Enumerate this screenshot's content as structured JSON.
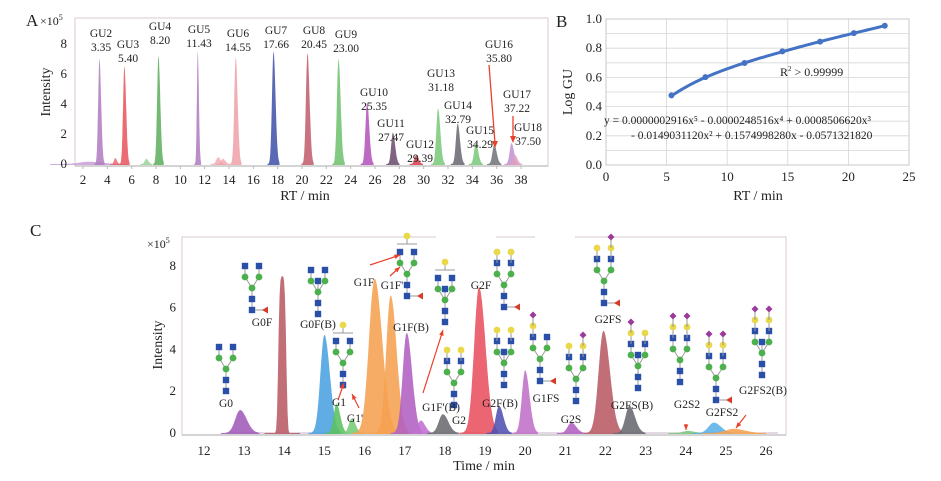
{
  "figure": {
    "panel_labels": {
      "a": "A",
      "b": "B",
      "c": "C"
    }
  },
  "chart_data": [
    {
      "id": "A",
      "type": "line",
      "title": "",
      "xlabel": "RT / min",
      "ylabel": "Intensity",
      "y_multiplier": "×10",
      "y_multiplier_exp": "5",
      "xlim": [
        1.6,
        39.2
      ],
      "ylim": [
        -0.2,
        9.9
      ],
      "xticks": [
        2,
        4,
        6,
        8,
        10,
        12,
        14,
        16,
        18,
        20,
        22,
        24,
        26,
        28,
        30,
        32,
        34,
        36,
        38
      ],
      "yticks": [
        0,
        2,
        4,
        6,
        8
      ],
      "grid": false,
      "peaks": [
        {
          "name": "GU2",
          "rt": 3.35,
          "height": 7.0,
          "color": "#b07ac0",
          "label_rt": "3.35"
        },
        {
          "name": "GU3",
          "rt": 5.4,
          "height": 6.5,
          "color": "#e8545a",
          "label_rt": "5.40"
        },
        {
          "name": "GU4",
          "rt": 8.2,
          "height": 7.2,
          "color": "#5aab5a",
          "label_rt": "8.20"
        },
        {
          "name": "GU5",
          "rt": 11.43,
          "height": 7.5,
          "color": "#b07ac0",
          "label_rt": "11.43"
        },
        {
          "name": "GU6",
          "rt": 14.55,
          "height": 7.1,
          "color": "#f0a0a8",
          "label_rt": "14.55"
        },
        {
          "name": "GU7",
          "rt": 17.66,
          "height": 7.5,
          "color": "#3e4fa8",
          "label_rt": "17.66"
        },
        {
          "name": "GU8",
          "rt": 20.45,
          "height": 7.4,
          "color": "#c05a6a",
          "label_rt": "20.45"
        },
        {
          "name": "GU9",
          "rt": 23.0,
          "height": 7.0,
          "color": "#6cc06c",
          "label_rt": "23.00"
        },
        {
          "name": "GU10",
          "rt": 25.35,
          "height": 4.1,
          "color": "#b050b8",
          "label_rt": "25.35"
        },
        {
          "name": "GU11",
          "rt": 27.47,
          "height": 2.1,
          "color": "#6a4a6a",
          "label_rt": "27.47"
        },
        {
          "name": "GU12",
          "rt": 29.39,
          "height": 0.6,
          "color": "#d83a4a",
          "label_rt": "29.39"
        },
        {
          "name": "GU13",
          "rt": 31.18,
          "height": 3.7,
          "color": "#78c878",
          "label_rt": "31.18"
        },
        {
          "name": "GU14",
          "rt": 32.79,
          "height": 2.7,
          "color": "#666670",
          "label_rt": "32.79"
        },
        {
          "name": "GU15",
          "rt": 34.29,
          "height": 1.4,
          "color": "#78c878",
          "label_rt": "34.29"
        },
        {
          "name": "GU16",
          "rt": 35.8,
          "height": 1.3,
          "color": "#707078",
          "label_rt": "35.80"
        },
        {
          "name": "GU17",
          "rt": 37.22,
          "height": 1.4,
          "color": "#c090d0",
          "label_rt": "37.22"
        },
        {
          "name": "GU18",
          "rt": 37.5,
          "height": 0.6,
          "color": "#e0a0c0",
          "label_rt": "37.50"
        }
      ],
      "minor_peaks": [
        {
          "rt": 2.5,
          "height": 0.15,
          "color": "#c090d0",
          "width": 0.8
        },
        {
          "rt": 4.65,
          "height": 0.4,
          "color": "#e8545a",
          "width": 0.1
        },
        {
          "rt": 7.2,
          "height": 0.35,
          "color": "#8acc8a",
          "width": 0.12
        },
        {
          "rt": 13.1,
          "height": 0.45,
          "color": "#f0a0a8",
          "width": 0.15
        },
        {
          "rt": 13.5,
          "height": 0.35,
          "color": "#f0a0a8",
          "width": 0.15
        }
      ]
    },
    {
      "id": "B",
      "type": "scatter",
      "xlabel": "RT / min",
      "ylabel": "Log GU",
      "xlim": [
        0,
        25
      ],
      "ylim": [
        0.0,
        1.0
      ],
      "xticks": [
        0,
        5,
        10,
        15,
        20,
        25
      ],
      "yticks": [
        "0.0",
        "0.2",
        "0.4",
        "0.6",
        "0.8",
        "1.0"
      ],
      "grid": true,
      "x": [
        5.4,
        8.2,
        11.43,
        14.55,
        17.66,
        20.45,
        23.0
      ],
      "y": [
        0.477,
        0.602,
        0.699,
        0.778,
        0.845,
        0.903,
        0.954
      ],
      "series_color": "#4472c4",
      "r2_text": "R",
      "r2_sup": "2",
      "r2_value": " > 0.99999",
      "equation_line1": "y = 0.0000002916x⁵ - 0.0000248516x⁴ + 0.0008506620x³",
      "equation_line2": "- 0.0149031120x² + 0.1574998280x - 0.0571321820"
    },
    {
      "id": "C",
      "type": "line",
      "xlabel": "Time / min",
      "ylabel": "Intensity",
      "y_multiplier": "×10",
      "y_multiplier_exp": "5",
      "xlim": [
        11.55,
        26.45
      ],
      "ylim": [
        -0.05,
        9.6
      ],
      "xticks": [
        12,
        13,
        14,
        15,
        16,
        17,
        18,
        19,
        20,
        21,
        22,
        23,
        24,
        25,
        26
      ],
      "yticks": [
        0,
        2,
        4,
        6,
        8
      ],
      "grid": false,
      "peaks": [
        {
          "name": "G0",
          "rt": 12.9,
          "height": 1.1,
          "width": 0.12,
          "color": "#a05ab8"
        },
        {
          "name": "G0F",
          "rt": 13.95,
          "height": 7.5,
          "width": 0.11,
          "color": "#b85a64",
          "flat": true
        },
        {
          "name": "G0F(B)",
          "rt": 15.0,
          "height": 4.7,
          "width": 0.1,
          "color": "#4aa0e0"
        },
        {
          "name": "G1",
          "rt": 15.3,
          "height": 1.4,
          "width": 0.07,
          "color": "#5ac060"
        },
        {
          "name": "G1'",
          "rt": 15.68,
          "height": 0.7,
          "width": 0.07,
          "color": "#78cc78"
        },
        {
          "name": "G1F",
          "rt": 16.25,
          "height": 7.4,
          "width": 0.14,
          "color": "#f5a050"
        },
        {
          "name": "G1F'",
          "rt": 16.65,
          "height": 6.6,
          "width": 0.11,
          "color": "#f5a050"
        },
        {
          "name": "G1F(B)",
          "rt": 17.05,
          "height": 4.8,
          "width": 0.1,
          "color": "#b060c0"
        },
        {
          "name": "G1F'(B)",
          "rt": 17.4,
          "height": 0.6,
          "width": 0.08,
          "color": "#c070d0"
        },
        {
          "name": "G2",
          "rt": 17.95,
          "height": 0.9,
          "width": 0.1,
          "color": "#6a6a70"
        },
        {
          "name": "G2F",
          "rt": 18.85,
          "height": 7.0,
          "width": 0.12,
          "color": "#e85060"
        },
        {
          "name": "G2F(B)",
          "rt": 19.35,
          "height": 1.3,
          "width": 0.08,
          "color": "#5050b0"
        },
        {
          "name": "G1FS",
          "rt": 20.0,
          "height": 3.0,
          "width": 0.08,
          "color": "#c070c8"
        },
        {
          "name": "G2S",
          "rt": 21.15,
          "height": 0.5,
          "width": 0.09,
          "color": "#b060c0"
        },
        {
          "name": "G2FS",
          "rt": 21.95,
          "height": 4.9,
          "width": 0.12,
          "color": "#b85a64"
        },
        {
          "name": "G2FS(B)",
          "rt": 22.6,
          "height": 1.3,
          "width": 0.1,
          "color": "#686870"
        },
        {
          "name": "G2S2",
          "rt": 24.05,
          "height": 0.1,
          "width": 0.12,
          "color": "#78c878"
        },
        {
          "name": "G2FS2",
          "rt": 24.7,
          "height": 0.5,
          "width": 0.13,
          "color": "#5ab0e8"
        },
        {
          "name": "G2FS2(B)",
          "rt": 25.2,
          "height": 0.2,
          "width": 0.2,
          "color": "#f5a050"
        }
      ],
      "glycan_labels": [
        "G0",
        "G0F",
        "G0F(B)",
        "G1",
        "G1'",
        "G1F",
        "G1F'",
        "G1F(B)",
        "G1F'(B)",
        "G2",
        "G2F",
        "G2F(B)",
        "G1FS",
        "G2S",
        "G2FS",
        "G2FS(B)",
        "G2S2",
        "G2FS2",
        "G2FS2(B)"
      ]
    }
  ],
  "glycan_symbol_colors": {
    "GlcNAc": "#2a4fa8",
    "Mannose": "#4cb04c",
    "Galactose": "#e8d84a",
    "Fucose": "#d83a2a",
    "NeuAc": "#9a3a9a",
    "link": "#999999",
    "arrow": "#e8402a"
  }
}
